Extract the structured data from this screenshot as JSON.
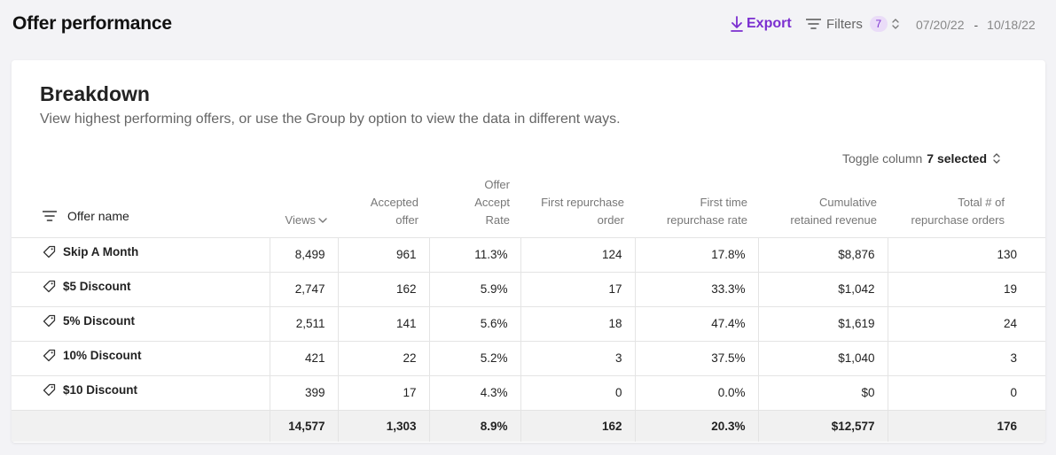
{
  "header": {
    "title": "Offer performance",
    "export_label": "Export",
    "filters_label": "Filters",
    "filters_count": "7",
    "date_start": "07/20/22",
    "date_sep": "-",
    "date_end": "10/18/22"
  },
  "breakdown": {
    "title": "Breakdown",
    "subtitle": "View highest performing offers, or use the Group by option to view the data in different ways.",
    "toggle_label": "Toggle column",
    "toggle_value": "7 selected"
  },
  "table": {
    "columns": [
      {
        "line1": "",
        "line2": "",
        "line3": "Offer name"
      },
      {
        "line1": "",
        "line2": "",
        "line3": "Views"
      },
      {
        "line1": "",
        "line2": "Accepted",
        "line3": "offer"
      },
      {
        "line1": "Offer",
        "line2": "Accept",
        "line3": "Rate"
      },
      {
        "line1": "",
        "line2": "First repurchase",
        "line3": "order"
      },
      {
        "line1": "",
        "line2": "First time",
        "line3": "repurchase rate"
      },
      {
        "line1": "",
        "line2": "Cumulative",
        "line3": "retained revenue"
      },
      {
        "line1": "",
        "line2": "Total # of",
        "line3": "repurchase orders"
      }
    ],
    "rows": [
      [
        "Skip A Month",
        "8,499",
        "961",
        "11.3%",
        "124",
        "17.8%",
        "$8,876",
        "130"
      ],
      [
        "$5 Discount",
        "2,747",
        "162",
        "5.9%",
        "17",
        "33.3%",
        "$1,042",
        "19"
      ],
      [
        "5% Discount",
        "2,511",
        "141",
        "5.6%",
        "18",
        "47.4%",
        "$1,619",
        "24"
      ],
      [
        "10% Discount",
        "421",
        "22",
        "5.2%",
        "3",
        "37.5%",
        "$1,040",
        "3"
      ],
      [
        "$10 Discount",
        "399",
        "17",
        "4.3%",
        "0",
        "0.0%",
        "$0",
        "0"
      ]
    ],
    "totals": [
      "",
      "14,577",
      "1,303",
      "8.9%",
      "162",
      "20.3%",
      "$12,577",
      "176"
    ]
  },
  "colors": {
    "accent": "#7b2fd0",
    "badge_bg": "#eadcf8"
  }
}
